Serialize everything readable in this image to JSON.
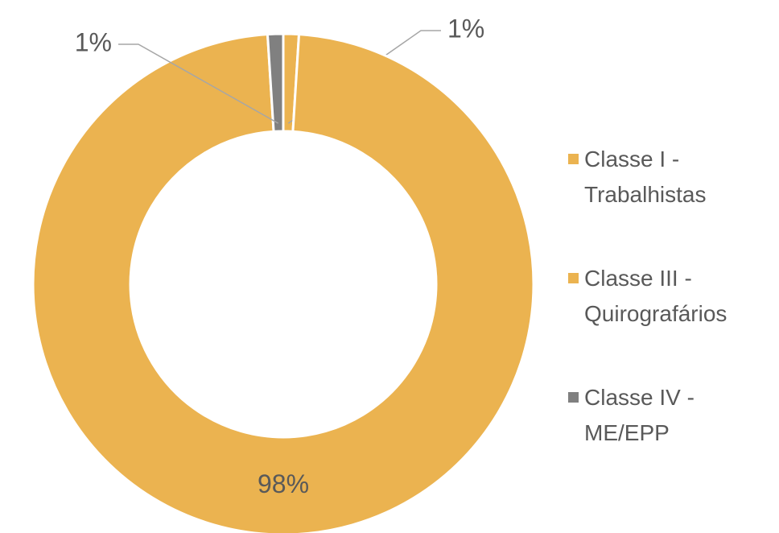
{
  "chart_data": {
    "type": "pie",
    "donut": true,
    "categories": [
      "Classe I - Trabalhistas",
      "Classe III - Quirografários",
      "Classe IV - ME/EPP"
    ],
    "values": [
      1,
      98,
      1
    ],
    "value_labels": [
      "1%",
      "98%",
      "1%"
    ],
    "colors": [
      "#ebb350",
      "#ebb350",
      "#808080"
    ],
    "legend": "right"
  }
}
